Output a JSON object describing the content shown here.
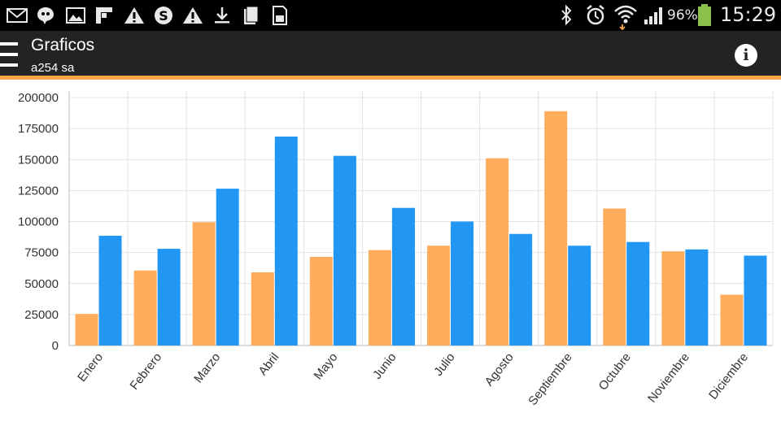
{
  "status_bar": {
    "icons_left": [
      "mail-icon",
      "chat-icon",
      "image-icon",
      "flipboard-icon",
      "warning-icon",
      "skype-icon",
      "warning-icon",
      "download-icon",
      "sim-icon",
      "storage-icon"
    ],
    "icons_right": [
      "bluetooth-icon",
      "alarm-icon",
      "wifi-icon",
      "signal-icon",
      "battery-icon"
    ],
    "battery": "96%",
    "time": "15:29"
  },
  "app_bar": {
    "title": "Graficos",
    "subtitle": "a254 sa",
    "accent_color": "#f7a548",
    "background": "#232323"
  },
  "chart_data": {
    "type": "bar",
    "categories": [
      "Enero",
      "Febrero",
      "Marzo",
      "Abril",
      "Mayo",
      "Junio",
      "Julio",
      "Agosto",
      "Septiembre",
      "Octubre",
      "Noviembre",
      "Diciembre"
    ],
    "series": [
      {
        "color": "#ffad5c",
        "values": [
          25500,
          60500,
          99500,
          59000,
          71500,
          77000,
          80500,
          151000,
          189000,
          110500,
          76000,
          41000
        ]
      },
      {
        "color": "#2196f3",
        "values": [
          88500,
          78000,
          126500,
          168500,
          153000,
          111000,
          100000,
          90000,
          80500,
          83500,
          77500,
          72500
        ]
      }
    ],
    "yticks": [
      "0",
      "25000",
      "50000",
      "75000",
      "100000",
      "125000",
      "150000",
      "175000",
      "200000"
    ],
    "ylim": [
      0,
      200000
    ],
    "grid": true,
    "legend": "none",
    "title": "",
    "xlabel": "",
    "ylabel": ""
  }
}
